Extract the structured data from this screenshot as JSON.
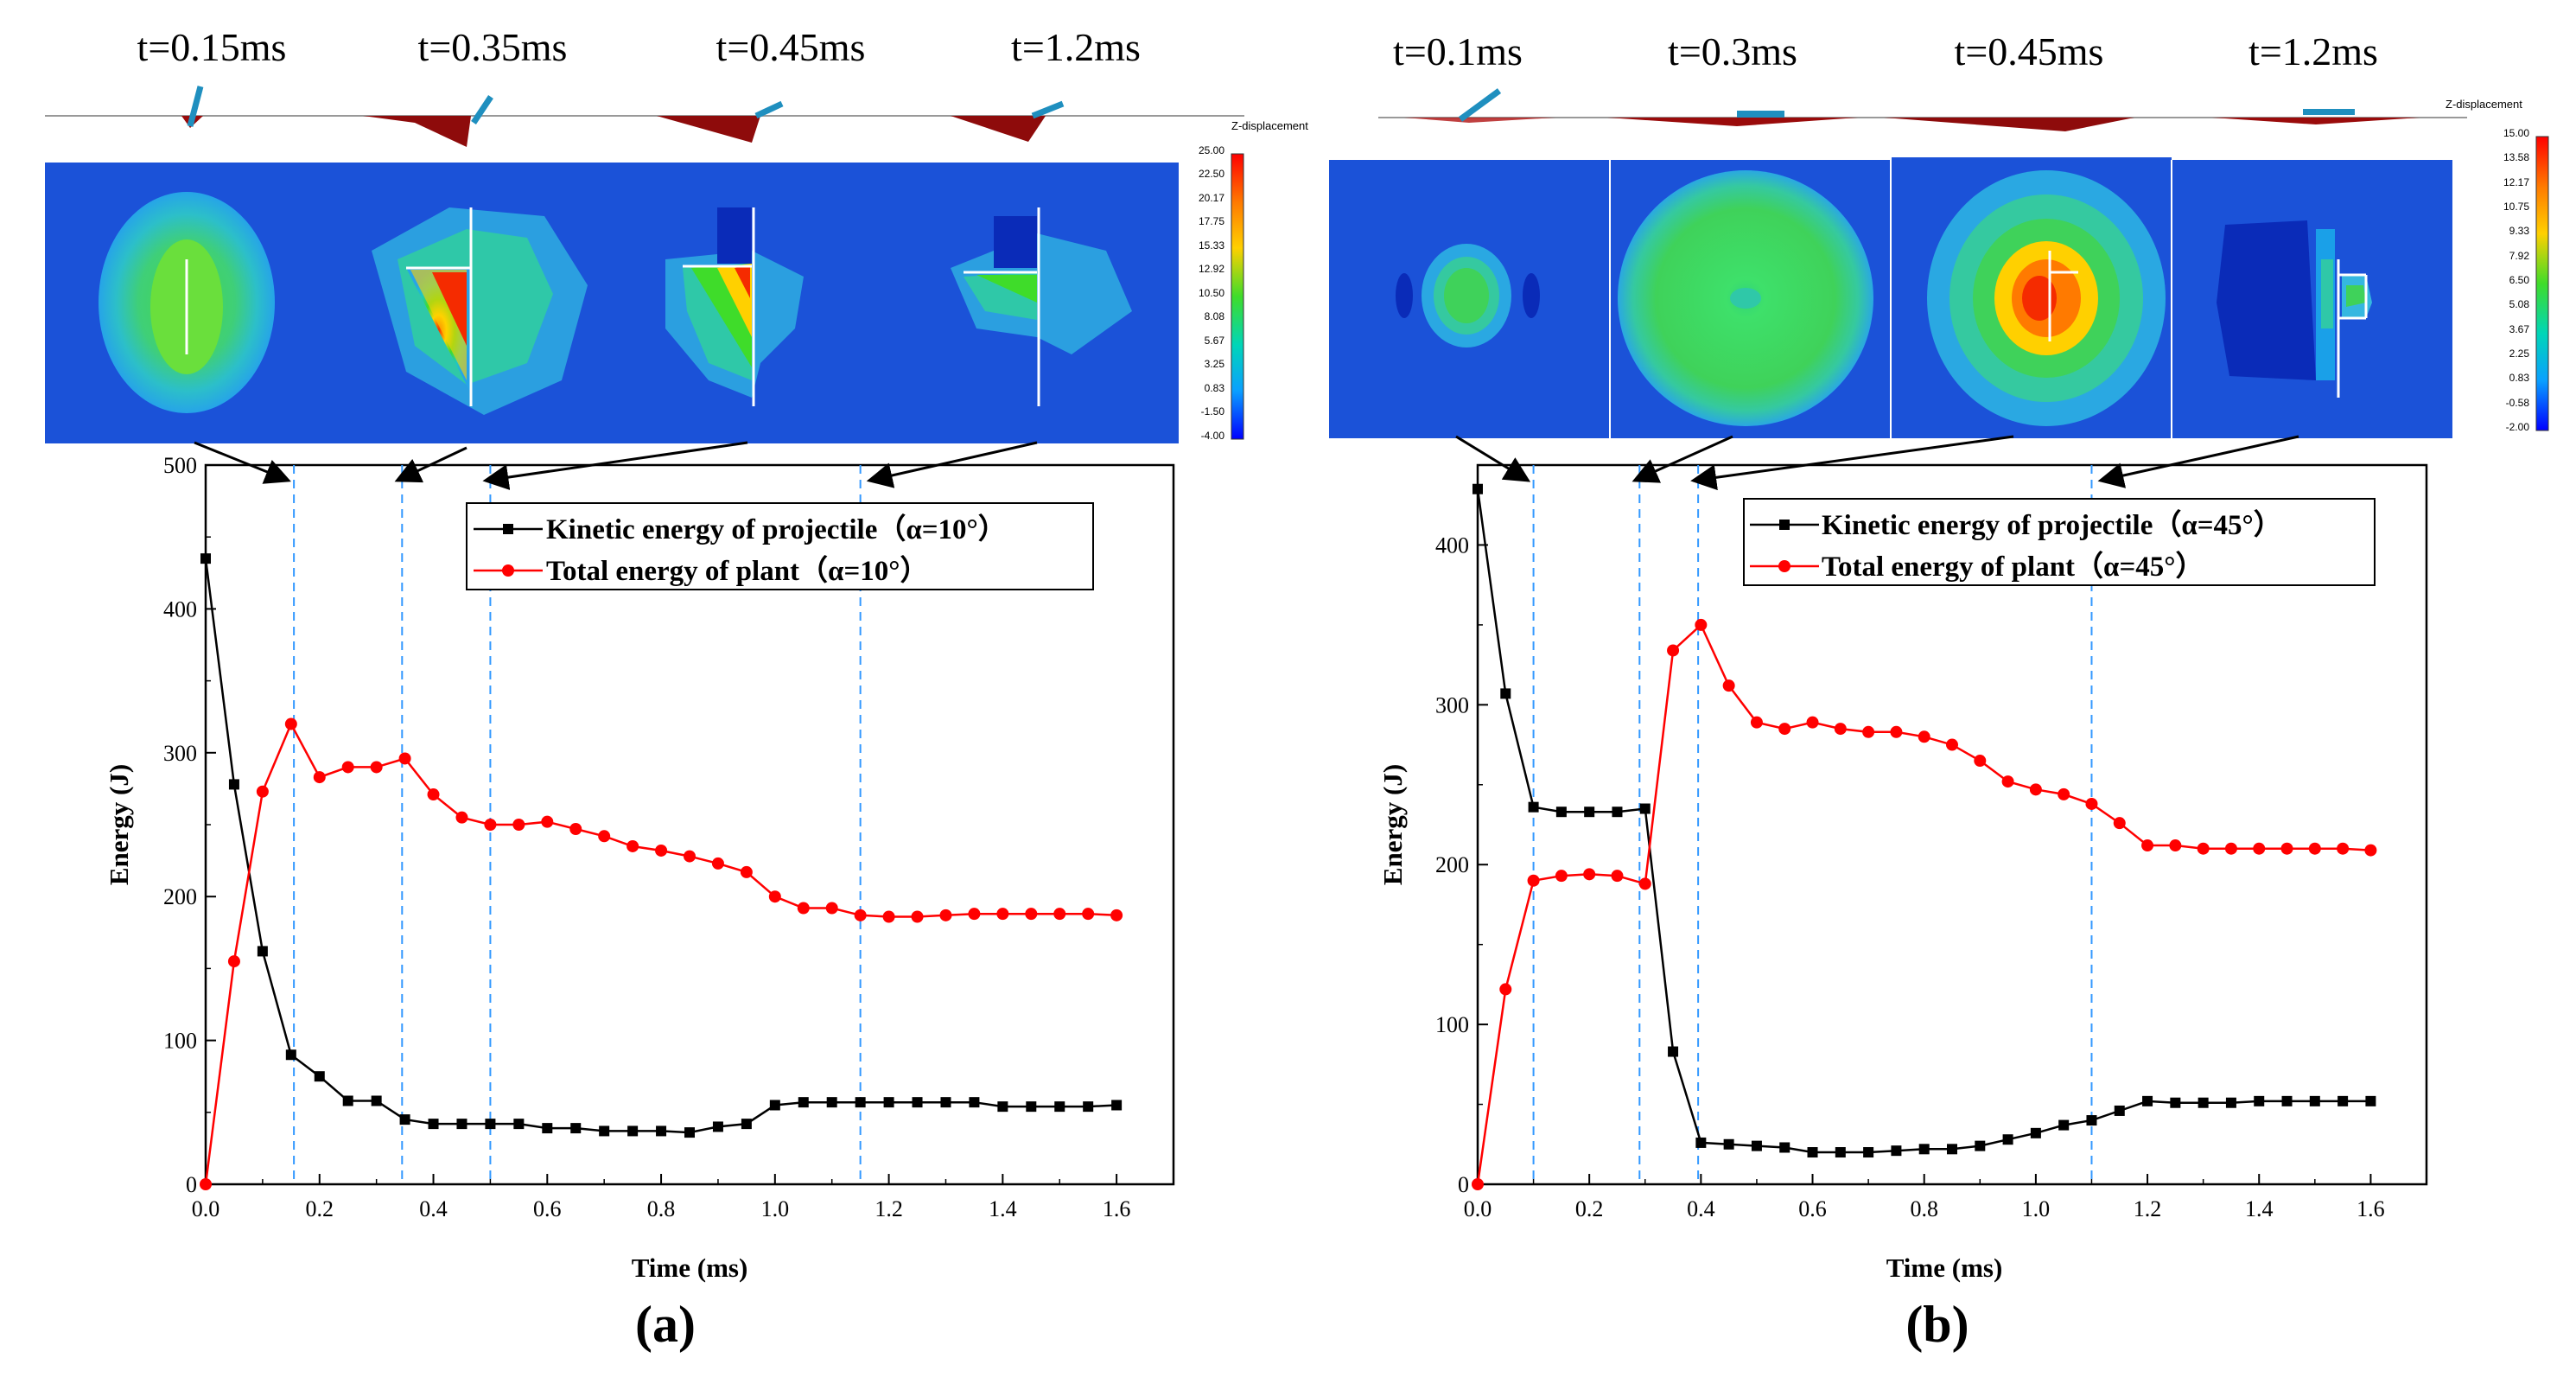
{
  "figure": {
    "panels": [
      {
        "id": "a",
        "panel_label": "(a)",
        "snapshot_times": [
          "t=0.15ms",
          "t=0.35ms",
          "t=0.45ms",
          "t=1.2ms"
        ],
        "colorbar": {
          "title": "Z-displacement",
          "ticks": [
            "25.00",
            "22.50",
            "20.17",
            "17.75",
            "15.33",
            "12.92",
            "10.50",
            "8.08",
            "5.67",
            "3.25",
            "0.83",
            "-1.50",
            "-4.00"
          ]
        }
      },
      {
        "id": "b",
        "panel_label": "(b)",
        "snapshot_times": [
          "t=0.1ms",
          "t=0.3ms",
          "t=0.45ms",
          "t=1.2ms"
        ],
        "colorbar": {
          "title": "Z-displacement",
          "ticks": [
            "15.00",
            "13.58",
            "12.17",
            "10.75",
            "9.33",
            "7.92",
            "6.50",
            "5.08",
            "3.67",
            "2.25",
            "0.83",
            "-0.58",
            "-2.00"
          ]
        }
      }
    ]
  },
  "colors": {
    "kinetic": "#000000",
    "plant": "#ff0000",
    "marker_lines": "#3399ff",
    "background": "#ffffff"
  },
  "chart_data": [
    {
      "type": "line",
      "xlabel": "Time (ms)",
      "ylabel": "Energy (J)",
      "xlim": [
        0,
        1.7
      ],
      "ylim": [
        0,
        500
      ],
      "xticks": [
        "0.0",
        "0.2",
        "0.4",
        "0.6",
        "0.8",
        "1.0",
        "1.2",
        "1.4",
        "1.6"
      ],
      "yticks": [
        "0",
        "100",
        "200",
        "300",
        "400",
        "500"
      ],
      "legend_position": "top-right",
      "vertical_markers": [
        0.155,
        0.345,
        0.5,
        1.15
      ],
      "x": [
        0.0,
        0.05,
        0.1,
        0.15,
        0.2,
        0.25,
        0.3,
        0.35,
        0.4,
        0.45,
        0.5,
        0.55,
        0.6,
        0.65,
        0.7,
        0.75,
        0.8,
        0.85,
        0.9,
        0.95,
        1.0,
        1.05,
        1.1,
        1.15,
        1.2,
        1.25,
        1.3,
        1.35,
        1.4,
        1.45,
        1.5,
        1.55,
        1.6
      ],
      "series": [
        {
          "name": "Kinetic energy of projectile（α=10°）",
          "marker": "square",
          "values": [
            435,
            278,
            162,
            90,
            75,
            58,
            58,
            45,
            42,
            42,
            42,
            42,
            39,
            39,
            37,
            37,
            37,
            36,
            40,
            42,
            55,
            57,
            57,
            57,
            57,
            57,
            57,
            57,
            54,
            54,
            54,
            54,
            55
          ]
        },
        {
          "name": "Total energy of plant（α=10°）",
          "marker": "circle",
          "values": [
            0,
            155,
            273,
            320,
            283,
            290,
            290,
            296,
            271,
            255,
            250,
            250,
            252,
            247,
            242,
            235,
            232,
            228,
            223,
            217,
            200,
            192,
            192,
            187,
            186,
            186,
            187,
            188,
            188,
            188,
            188,
            188,
            187
          ]
        }
      ]
    },
    {
      "type": "line",
      "xlabel": "Time (ms)",
      "ylabel": "Energy (J)",
      "xlim": [
        0,
        1.7
      ],
      "ylim": [
        0,
        450
      ],
      "xticks": [
        "0.0",
        "0.2",
        "0.4",
        "0.6",
        "0.8",
        "1.0",
        "1.2",
        "1.4",
        "1.6"
      ],
      "yticks": [
        "0",
        "100",
        "200",
        "300",
        "400"
      ],
      "legend_position": "top-right",
      "vertical_markers": [
        0.1,
        0.29,
        0.395,
        1.1
      ],
      "x": [
        0.0,
        0.05,
        0.1,
        0.15,
        0.2,
        0.25,
        0.3,
        0.35,
        0.4,
        0.45,
        0.5,
        0.55,
        0.6,
        0.65,
        0.7,
        0.75,
        0.8,
        0.85,
        0.9,
        0.95,
        1.0,
        1.05,
        1.1,
        1.15,
        1.2,
        1.25,
        1.3,
        1.35,
        1.4,
        1.45,
        1.5,
        1.55,
        1.6
      ],
      "series": [
        {
          "name": "Kinetic energy of projectile（α=45°）",
          "marker": "square",
          "values": [
            435,
            307,
            236,
            233,
            233,
            233,
            235,
            83,
            26,
            25,
            24,
            23,
            20,
            20,
            20,
            21,
            22,
            22,
            24,
            28,
            32,
            37,
            40,
            46,
            52,
            51,
            51,
            51,
            52,
            52,
            52,
            52,
            52
          ]
        },
        {
          "name": "Total energy of plant（α=45°）",
          "marker": "circle",
          "values": [
            0,
            122,
            190,
            193,
            194,
            193,
            188,
            334,
            350,
            312,
            289,
            285,
            289,
            285,
            283,
            283,
            280,
            275,
            265,
            252,
            247,
            244,
            238,
            226,
            212,
            212,
            210,
            210,
            210,
            210,
            210,
            210,
            209
          ]
        }
      ]
    }
  ]
}
